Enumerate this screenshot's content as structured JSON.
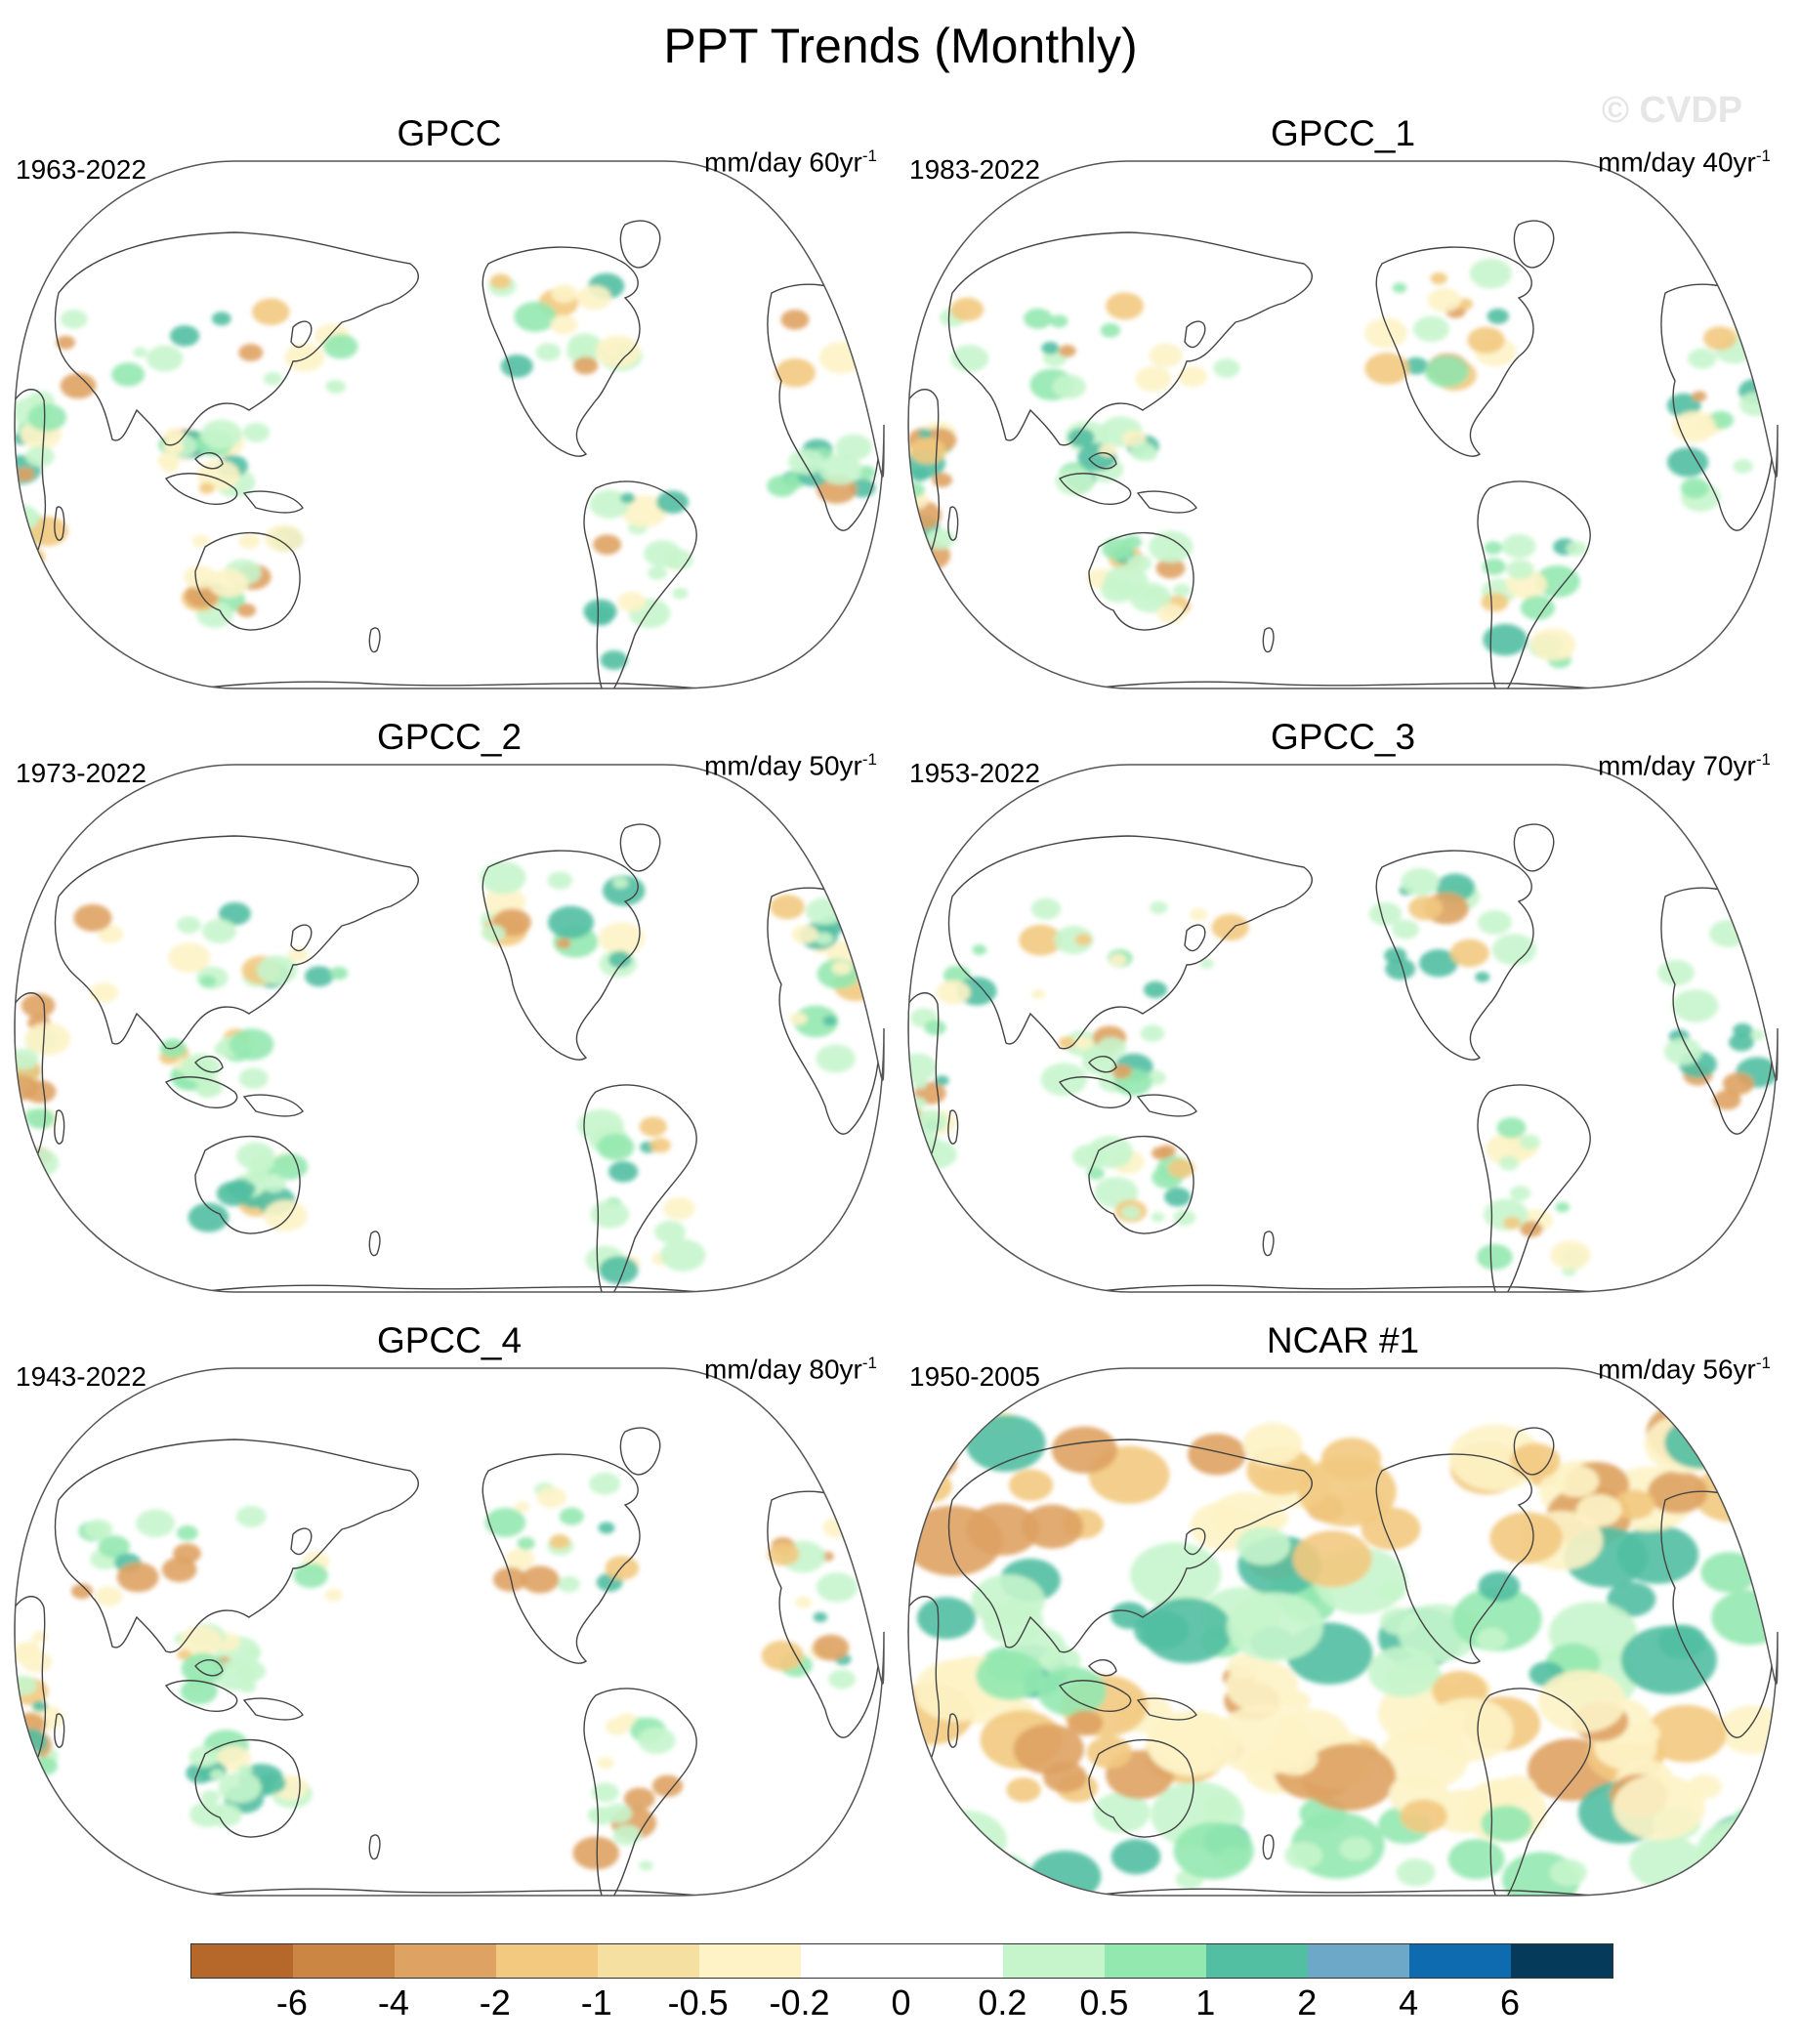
{
  "title": "PPT Trends (Monthly)",
  "watermark": "© CVDP",
  "panels": [
    {
      "title": "GPCC",
      "years": "1963-2022",
      "units": "mm/day 60yr",
      "exponent": "-1",
      "style": "land"
    },
    {
      "title": "GPCC_1",
      "years": "1983-2022",
      "units": "mm/day 40yr",
      "exponent": "-1",
      "style": "land"
    },
    {
      "title": "GPCC_2",
      "years": "1973-2022",
      "units": "mm/day 50yr",
      "exponent": "-1",
      "style": "land"
    },
    {
      "title": "GPCC_3",
      "years": "1953-2022",
      "units": "mm/day 70yr",
      "exponent": "-1",
      "style": "land"
    },
    {
      "title": "GPCC_4",
      "years": "1943-2022",
      "units": "mm/day 80yr",
      "exponent": "-1",
      "style": "land"
    },
    {
      "title": "NCAR #1",
      "years": "1950-2005",
      "units": "mm/day 56yr",
      "exponent": "-1",
      "style": "global"
    }
  ],
  "colorbar": {
    "colors": [
      "#b5682a",
      "#cc8644",
      "#dea263",
      "#f2c97f",
      "#f5e0a2",
      "#fdf3c7",
      "#ffffff",
      "#ffffff",
      "#c6f5cc",
      "#93e8b0",
      "#52bfa2",
      "#6ea8c9",
      "#0f6bb0",
      "#053a5a"
    ],
    "labels": [
      "-6",
      "-4",
      "-2",
      "-1",
      "-0.5",
      "-0.2",
      "0",
      "0.2",
      "0.5",
      "1",
      "2",
      "4",
      "6"
    ]
  },
  "map_colors": {
    "outline": "#555555",
    "coast": "#444444",
    "wet_light": "#c6f5cc",
    "wet_mid": "#93e8b0",
    "wet_strong": "#52bfa2",
    "dry_light": "#fdf3c7",
    "dry_mid": "#f2c97f",
    "dry_strong": "#dea263"
  }
}
